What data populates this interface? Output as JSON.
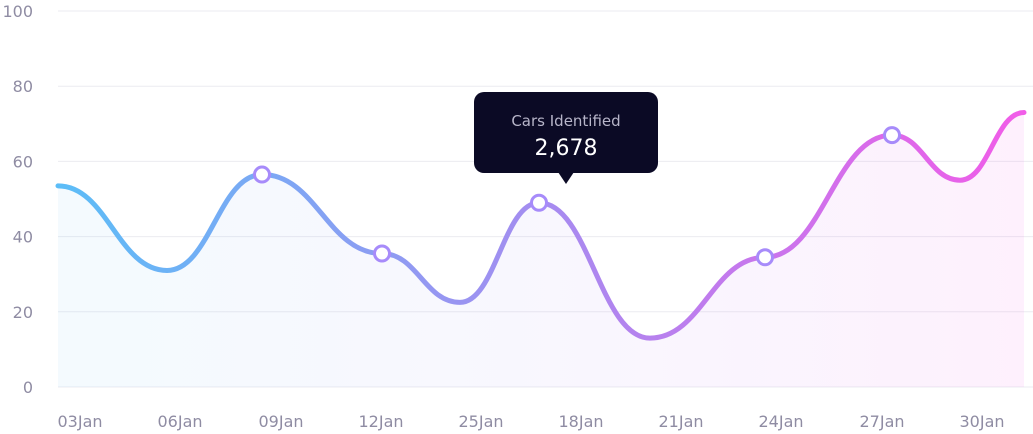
{
  "chart_data": {
    "type": "line",
    "title": "",
    "xlabel": "",
    "ylabel": "",
    "ylim": [
      0,
      100
    ],
    "yticks": [
      0,
      20,
      40,
      60,
      80,
      100
    ],
    "grid": true,
    "categories": [
      "03Jan",
      "06Jan",
      "09Jan",
      "12Jan",
      "25Jan",
      "18Jan",
      "21Jan",
      "24Jan",
      "27Jan",
      "30Jan"
    ],
    "series": [
      {
        "values": [
          {
            "x": "03Jan",
            "y": 53.5
          },
          {
            "x": "06Jan",
            "y": 31
          },
          {
            "x": "09Jan",
            "y": 56.5,
            "marker": true
          },
          {
            "x": "12Jan",
            "y": 35.5,
            "marker": true
          },
          {
            "x": "25Jan",
            "y": 22.5
          },
          {
            "x": "25Jan-18Jan",
            "y": 49,
            "marker": true
          },
          {
            "x": "21Jan",
            "y": 13
          },
          {
            "x": "24Jan",
            "y": 34.5,
            "marker": true
          },
          {
            "x": "27Jan",
            "y": 67,
            "marker": true
          },
          {
            "x": "30Jan",
            "y": 55
          },
          {
            "x": "end",
            "y": 73
          }
        ]
      }
    ],
    "colors": {
      "start": "#5cbdf7",
      "mid": "#a58cf0",
      "end": "#f15ce8",
      "marker_stroke": "#a78bfa",
      "grid": "#ebebf0"
    },
    "tooltip": {
      "label": "Cars Identified",
      "value": "2,678"
    }
  }
}
